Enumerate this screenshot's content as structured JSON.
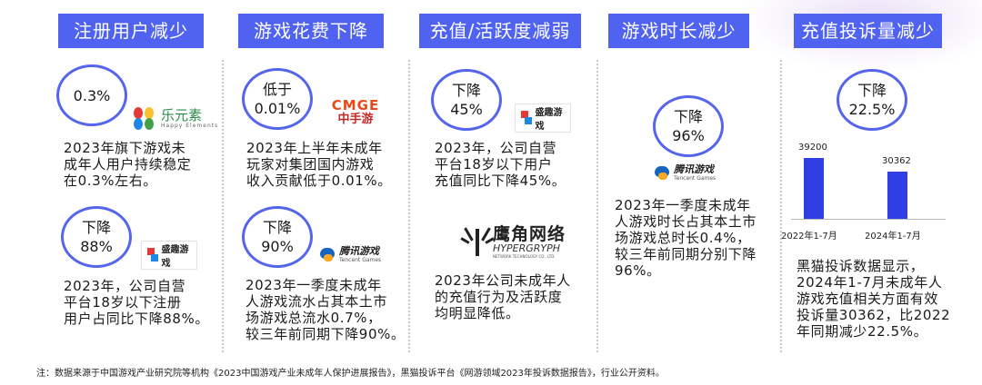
{
  "headers": [
    "注册用户减少",
    "游戏花费下降",
    "充值/活跃度减弱",
    "游戏时长减少",
    "充值投诉量减少"
  ],
  "col1": {
    "circle1": "0.3%",
    "logo1": {
      "name": "乐元素",
      "sub": "Happy Elements"
    },
    "text1": [
      "2023年旗下游戏未",
      "成年人用户持续稳定",
      "在0.3%左右。"
    ],
    "circle2": [
      "下降",
      "88%"
    ],
    "logo2": "盛趣游戏",
    "text2": [
      "2023年，公司自营",
      "平台18岁以下注册",
      "用户占同比下降88%。"
    ]
  },
  "col2": {
    "circle1": [
      "低于",
      "0.01%"
    ],
    "logo1": {
      "a": "CMGE",
      "b": "中手游"
    },
    "text1": [
      "2023年上半年未成年",
      "玩家对集团国内游戏",
      "收入贡献低于0.01%。"
    ],
    "circle2": [
      "下降",
      "90%"
    ],
    "logo2": {
      "a": "腾讯游戏",
      "b": "Tencent Games"
    },
    "text2": [
      "2023年一季度未成年",
      "人游戏流水占其本土市",
      "场游戏总流水0.7%，",
      "较三年前同期下降90%。"
    ]
  },
  "col3": {
    "circle1": [
      "下降",
      "45%"
    ],
    "logo1": "盛趣游戏",
    "text1": [
      "2023年，公司自营",
      "平台18岁以下用户",
      "充值同比下降45%。"
    ],
    "logo2": {
      "a": "鹰角网络",
      "b": "HYPERGRYPH",
      "c": "NETWORK TECHNOLOGY CO., LTD."
    },
    "text2": [
      "2023年公司未成年人",
      "的充值行为及活跃度",
      "均明显降低。"
    ]
  },
  "col4": {
    "circle1": [
      "下降",
      "96%"
    ],
    "logo1": {
      "a": "腾讯游戏",
      "b": "Tencent Games"
    },
    "text1": [
      "2023年一季度未成年",
      "人游戏时长占其本土市",
      "场游戏总时长0.4%，",
      "较三年前同期分别下降",
      "96%。"
    ]
  },
  "col5": {
    "circle1": [
      "下降",
      "22.5%"
    ],
    "text1": [
      "黑猫投诉数据显示，",
      "2024年1-7月未成年人",
      "游戏充值相关方面有效",
      "投诉量30362，比2022",
      "年同期减少22.5%。"
    ]
  },
  "chart_data": {
    "type": "bar",
    "categories": [
      "2022年1-7月",
      "2024年1-7月"
    ],
    "values": [
      39200,
      30362
    ],
    "data_labels": [
      "39200",
      "30362"
    ]
  },
  "footnote": "注：数据来源于中国游戏产业研究院等机构《2023中国游戏产业未成年人保护进展报告》，黑猫投诉平台《网游领域2023年投诉数据报告》，行业公开资料。",
  "colors": {
    "accent": "#5062f0",
    "circle_border": "#5565ec",
    "bar": "#2f3fe3"
  }
}
